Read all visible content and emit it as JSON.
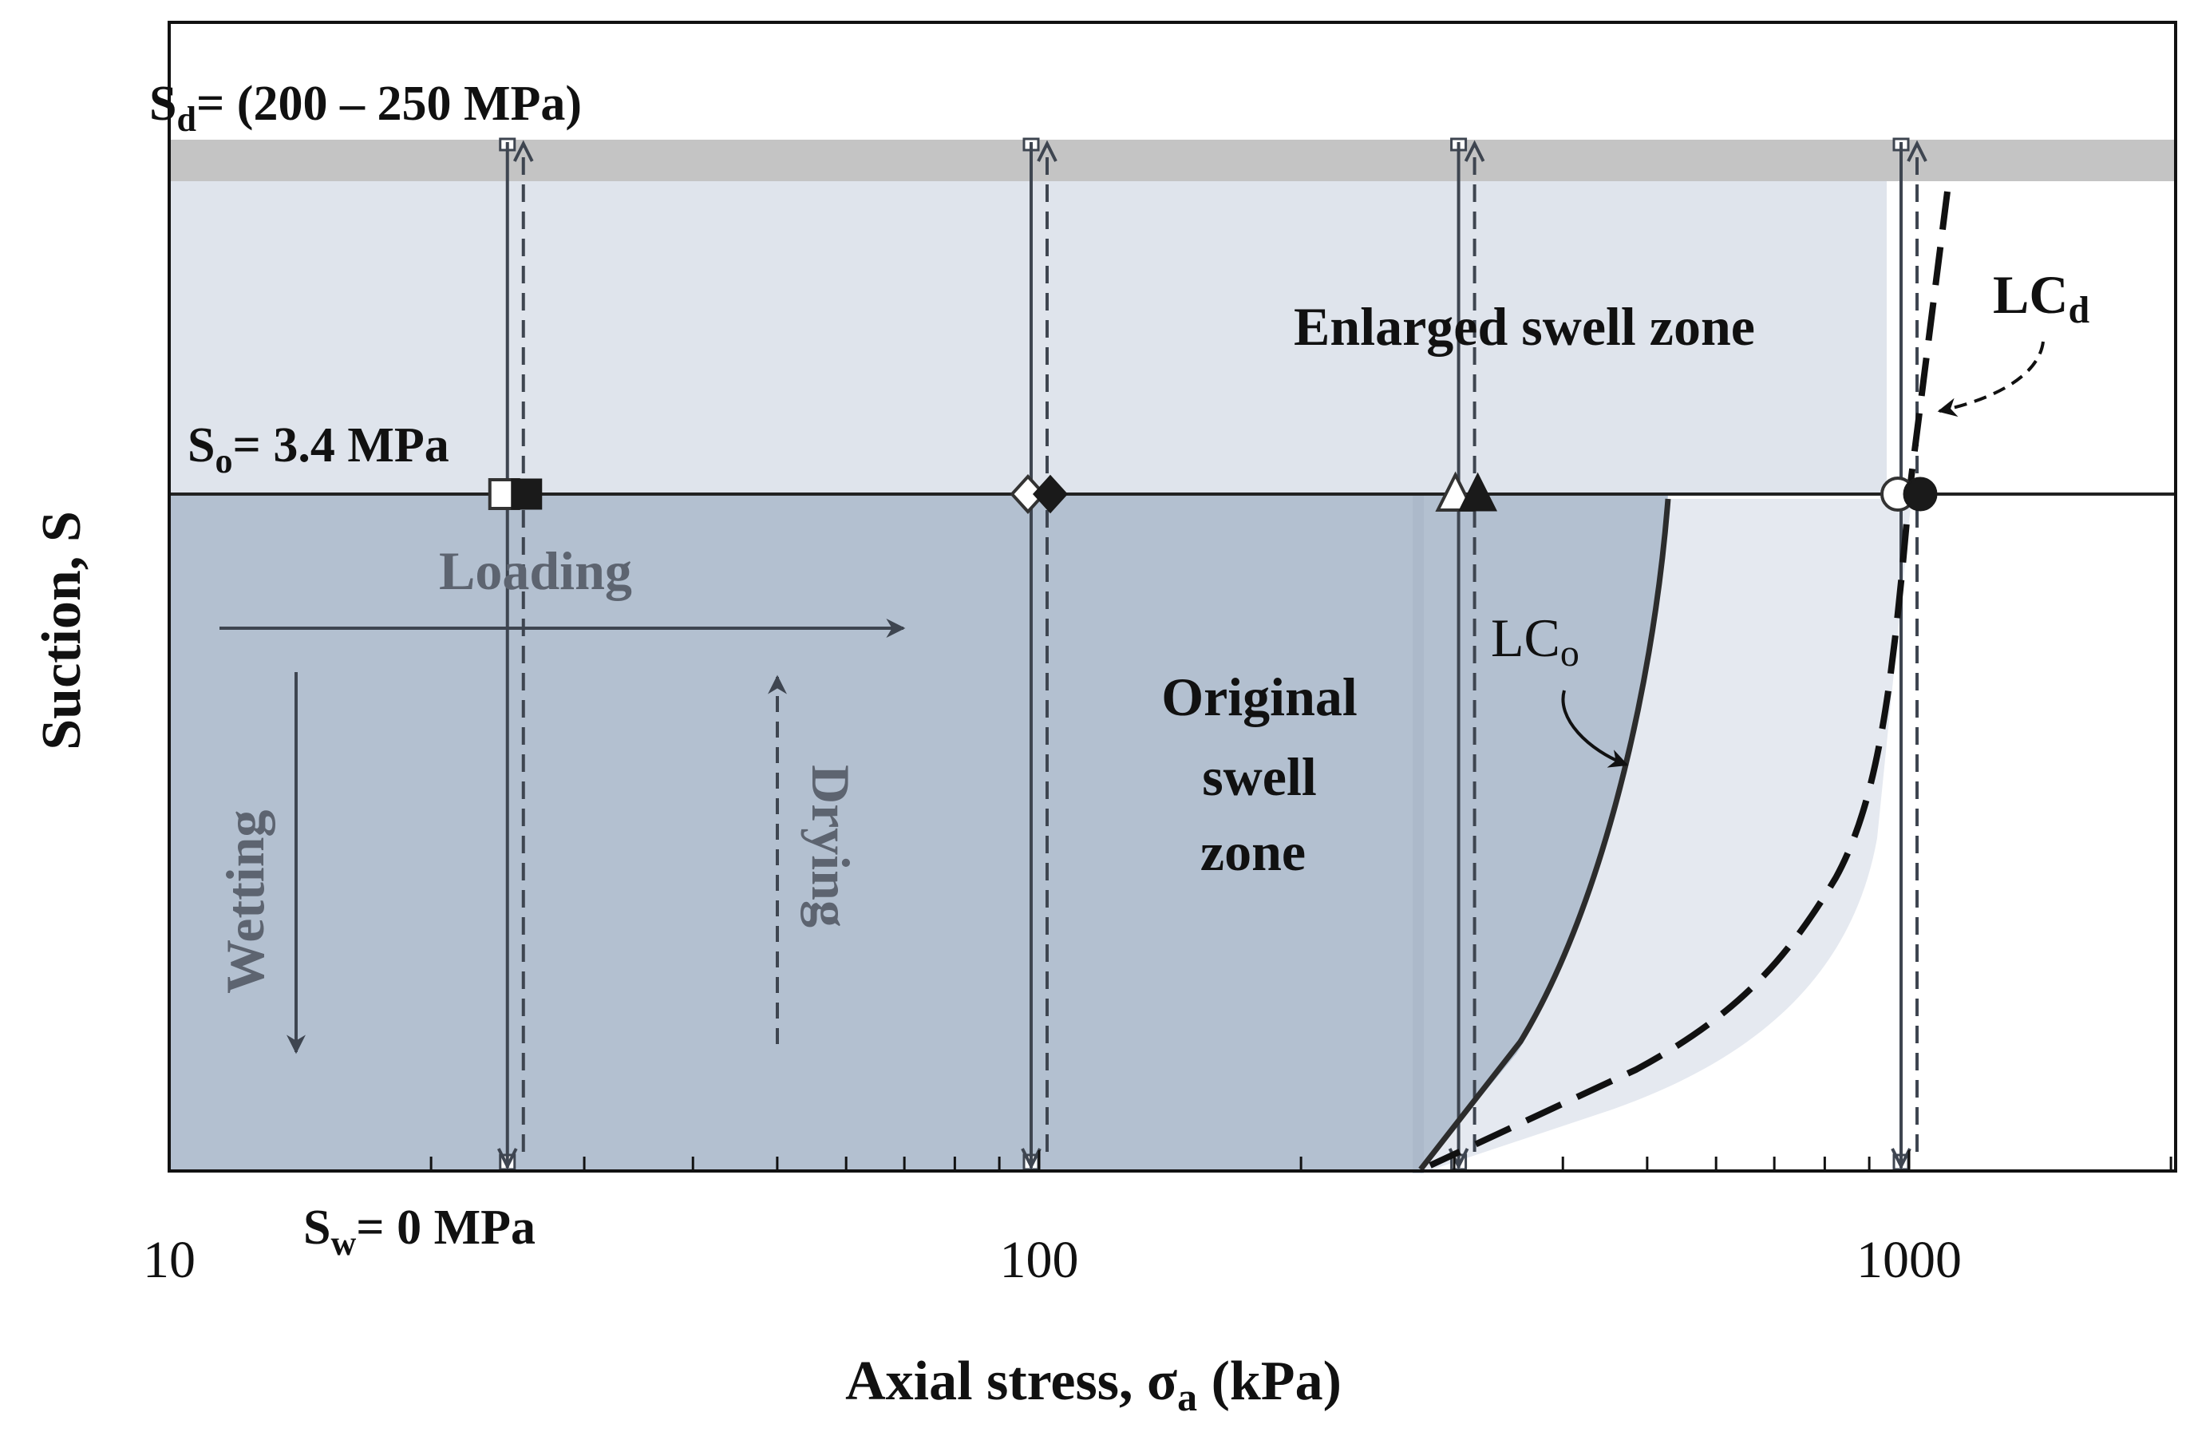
{
  "axes": {
    "x_label_main": "Axial stress, ",
    "x_label_symbol": "σ",
    "x_label_sub": "a",
    "x_label_unit": " (kPa)",
    "y_label": "Suction, S",
    "x_scale": "log",
    "x_range": [
      10,
      2500
    ],
    "x_ticks": [
      {
        "value": 10,
        "label": "10"
      },
      {
        "value": 100,
        "label": "100"
      },
      {
        "value": 1000,
        "label": "1000"
      }
    ]
  },
  "levels": {
    "drying": {
      "main": "S",
      "sub": "d",
      "rest": "= (200 – 250 MPa)"
    },
    "initial": {
      "main": "S",
      "sub": "o",
      "rest": "= 3.4 MPa"
    },
    "wetted": {
      "main": "S",
      "sub": "w",
      "rest": "= 0 MPa"
    }
  },
  "labels": {
    "enlarged_zone": "Enlarged swell zone",
    "original_zone_lines": [
      "Original",
      "swell",
      "zone"
    ],
    "lc_original": {
      "main": "LC",
      "sub": "o"
    },
    "lc_dried": {
      "main": "LC",
      "sub": "d"
    },
    "loading": "Loading",
    "wetting": "Wetting",
    "drying": "Drying"
  },
  "test_paths": [
    {
      "stress_kpa": 25,
      "marker": "square"
    },
    {
      "stress_kpa": 100,
      "marker": "diamond"
    },
    {
      "stress_kpa": 310,
      "marker": "triangle"
    },
    {
      "stress_kpa": 1000,
      "marker": "circle"
    }
  ],
  "colors": {
    "original_zone": "#b3c0d0",
    "enlarged_zone": "#dfe4ec",
    "drying_band": "#c4c4c4",
    "path_line": "#3e4550",
    "curve": "#2c2c2c",
    "annotation": "#5d6470"
  }
}
